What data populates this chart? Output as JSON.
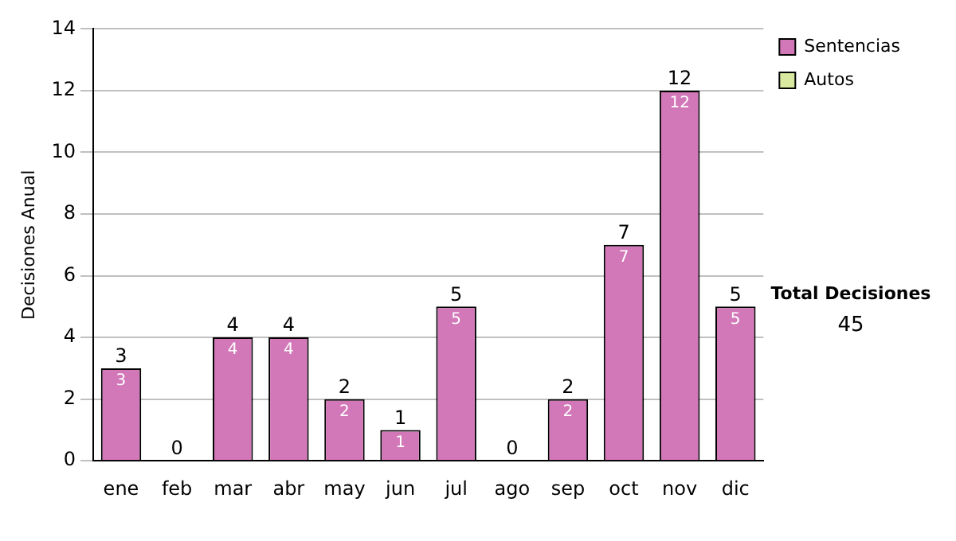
{
  "chart_data": {
    "type": "bar",
    "stacked": true,
    "ylabel": "Decisiones Anual",
    "categories": [
      "ene",
      "feb",
      "mar",
      "abr",
      "may",
      "jun",
      "jul",
      "ago",
      "sep",
      "oct",
      "nov",
      "dic"
    ],
    "series": [
      {
        "name": "Sentencias",
        "color": "#d277b8",
        "values": [
          3,
          0,
          4,
          4,
          2,
          1,
          5,
          0,
          2,
          7,
          12,
          5
        ],
        "value_labels": [
          "3",
          null,
          "4",
          "4",
          "2",
          "1",
          "5",
          null,
          "2",
          "7",
          "12",
          "5"
        ]
      },
      {
        "name": "Autos",
        "color": "#d9eaa0",
        "values": [
          0,
          0,
          0,
          0,
          0,
          0,
          0,
          0,
          0,
          0,
          0,
          0
        ]
      }
    ],
    "totals": [
      "3",
      "0",
      "4",
      "4",
      "2",
      "1",
      "5",
      "0",
      "2",
      "7",
      "12",
      "5"
    ],
    "ylim": [
      0,
      14
    ],
    "yticks": [
      0,
      2,
      4,
      6,
      8,
      10,
      12,
      14
    ],
    "grid": "y",
    "legend": "right",
    "annotations": [
      "Total Decisiones",
      "45"
    ]
  }
}
